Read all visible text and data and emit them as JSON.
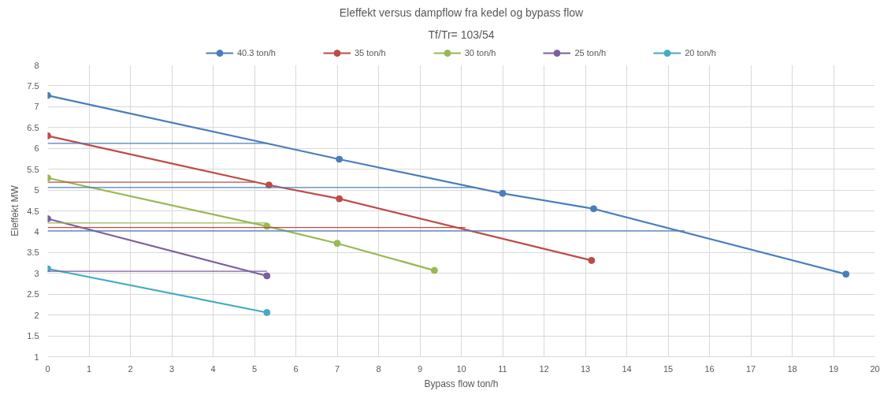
{
  "chart_data": {
    "type": "line",
    "title": "Eleffekt versus dampflow fra kedel og bypass flow",
    "subtitle": "Tf/Tr= 103/54",
    "xlabel": "Bypass flow ton/h",
    "ylabel": "Eleffekt MW",
    "xlim": [
      0,
      20
    ],
    "xticks": [
      0,
      1,
      2,
      3,
      4,
      5,
      6,
      7,
      8,
      9,
      10,
      11,
      12,
      13,
      14,
      15,
      16,
      17,
      18,
      19,
      20
    ],
    "ylim": [
      1,
      8
    ],
    "yticks": [
      1,
      1.5,
      2,
      2.5,
      3,
      3.5,
      4,
      4.5,
      5,
      5.5,
      6,
      6.5,
      7,
      7.5,
      8
    ],
    "grid": true,
    "legend": "top",
    "marker": "circle",
    "line_style": "solid",
    "series": [
      {
        "name": "40.3 ton/h",
        "color": "#4a7ebb",
        "x": [
          0,
          7.05,
          11.0,
          13.2,
          19.3
        ],
        "values": [
          7.27,
          5.74,
          4.92,
          4.55,
          2.98
        ]
      },
      {
        "name": "35 ton/h",
        "color": "#be4b48",
        "x": [
          0,
          5.35,
          7.05,
          13.15
        ],
        "values": [
          6.3,
          5.12,
          4.79,
          3.31
        ]
      },
      {
        "name": "30 ton/h",
        "color": "#98b954",
        "x": [
          0,
          5.3,
          7.0,
          9.35
        ],
        "values": [
          5.29,
          4.13,
          3.72,
          3.07
        ]
      },
      {
        "name": "25 ton/h",
        "color": "#7d5fa0",
        "x": [
          0,
          5.3
        ],
        "values": [
          4.31,
          2.94
        ]
      },
      {
        "name": "20 ton/h",
        "color": "#46aac5",
        "x": [
          0,
          5.3
        ],
        "values": [
          3.11,
          2.06
        ]
      },
      {
        "color": "#4a7ebb",
        "marker": "none",
        "x": [
          0,
          5.3
        ],
        "values": [
          6.12,
          6.12
        ]
      },
      {
        "color": "#be4b48",
        "marker": "none",
        "x": [
          0,
          5.0
        ],
        "values": [
          5.19,
          5.19
        ]
      },
      {
        "color": "#4a7ebb",
        "marker": "none",
        "x": [
          0,
          10.3
        ],
        "values": [
          5.06,
          5.06
        ]
      },
      {
        "color": "#98b954",
        "marker": "none",
        "x": [
          0,
          5.3
        ],
        "values": [
          4.21,
          4.21
        ]
      },
      {
        "color": "#be4b48",
        "marker": "none",
        "x": [
          0,
          10.1
        ],
        "values": [
          4.1,
          4.1
        ]
      },
      {
        "color": "#4a7ebb",
        "marker": "none",
        "x": [
          0,
          15.4
        ],
        "values": [
          4.02,
          4.02
        ]
      },
      {
        "color": "#7d5fa0",
        "marker": "none",
        "x": [
          0,
          5.3
        ],
        "values": [
          3.05,
          3.05
        ]
      }
    ]
  }
}
